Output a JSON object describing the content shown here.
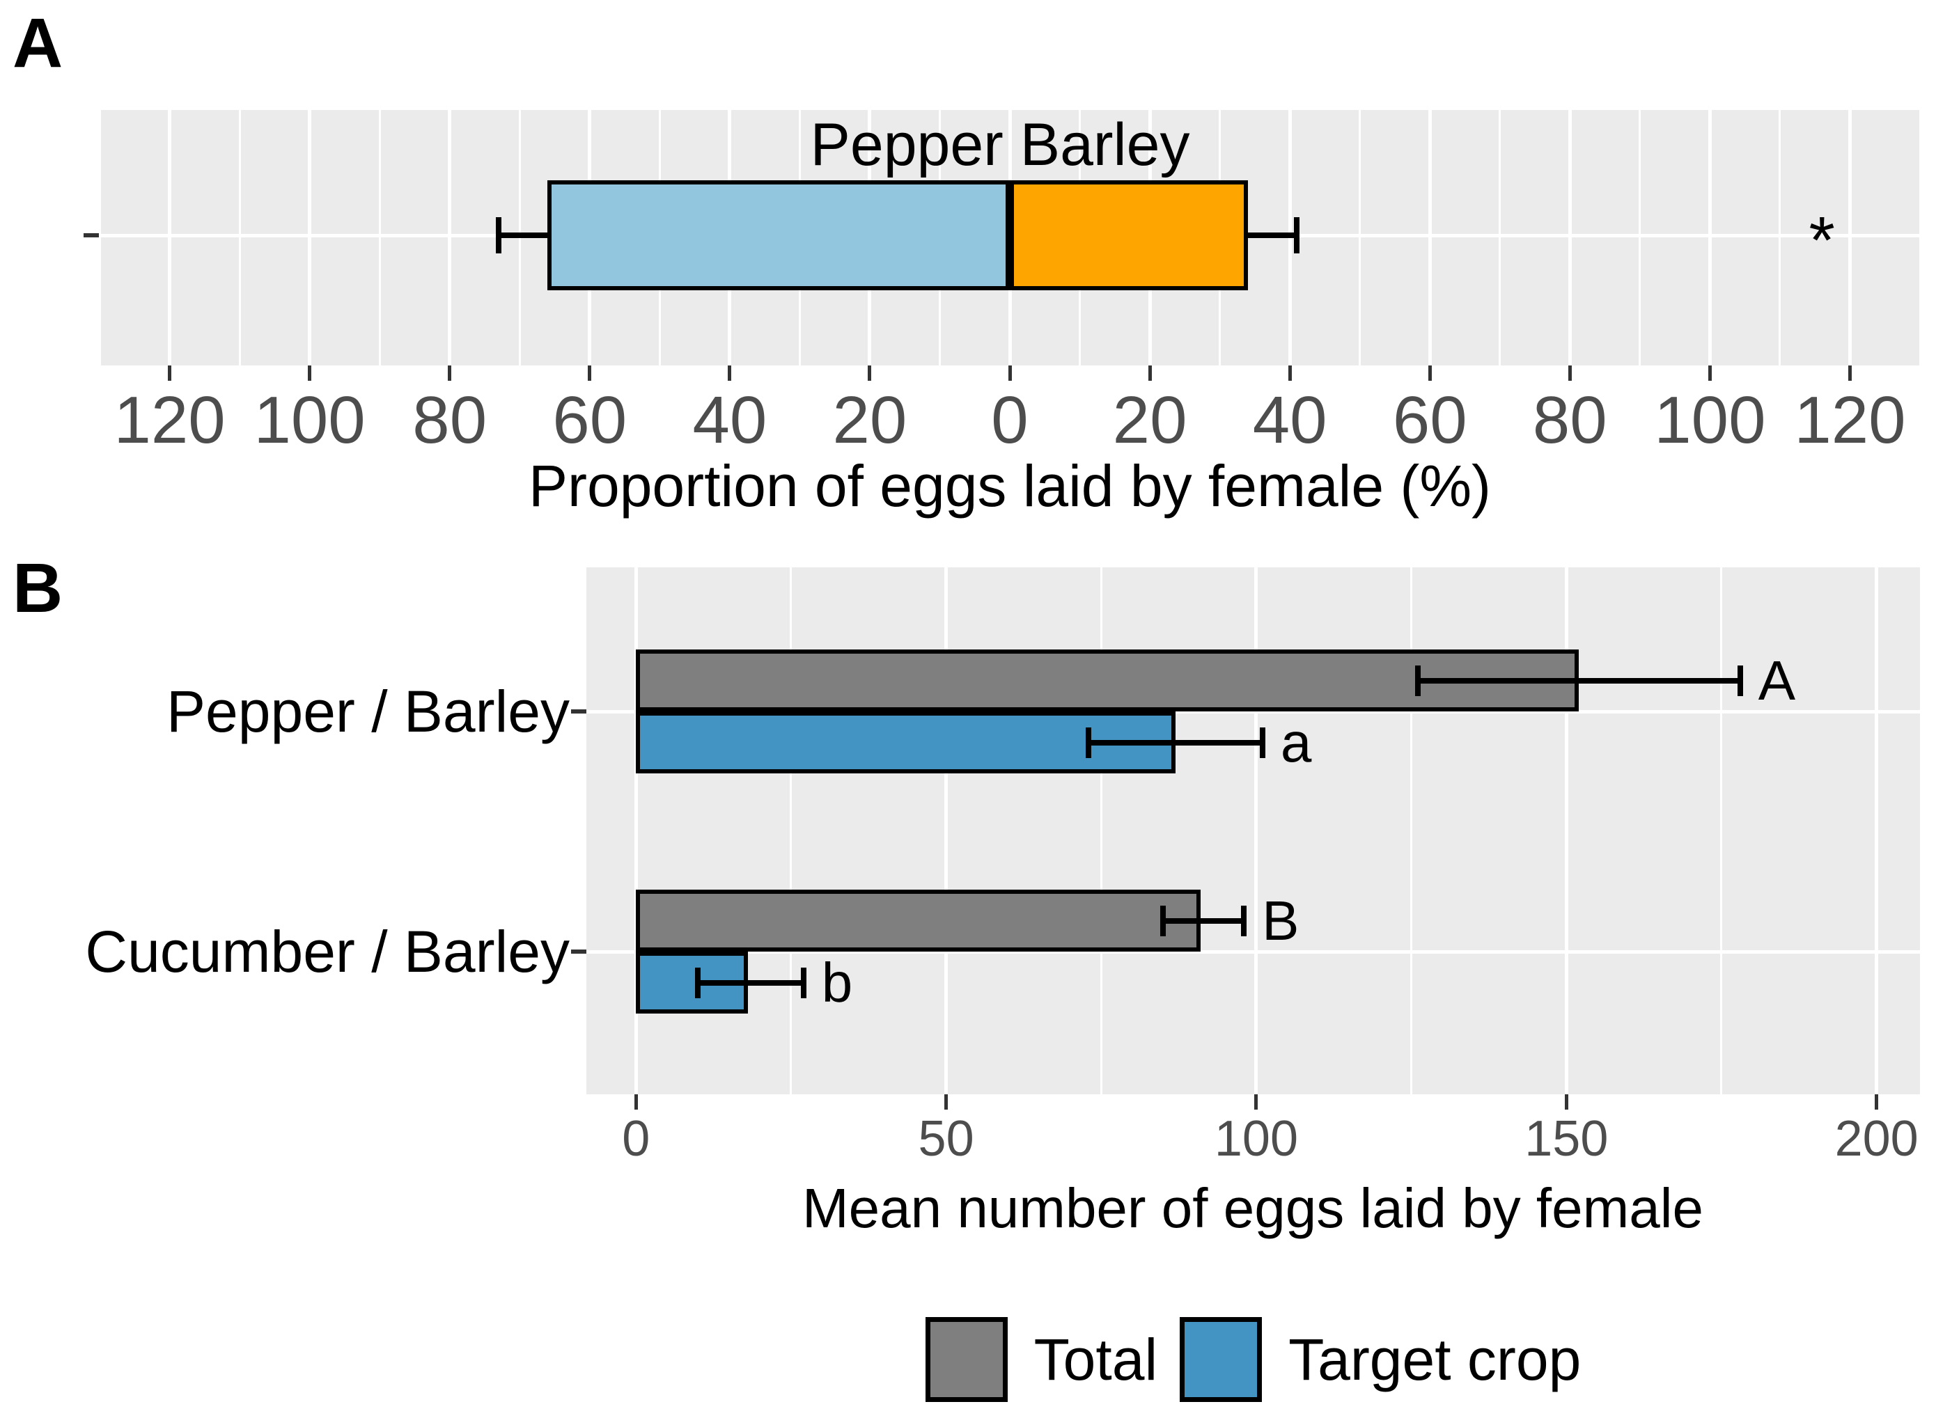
{
  "figure_labels": {
    "panel_a_tag": "A",
    "panel_b_tag": "B"
  },
  "colors": {
    "panel_bg": "#EBEBEB",
    "grid": "#FFFFFF",
    "bar_outline": "#000000",
    "tick_label": "#4D4D4D",
    "axis_title": "#000000",
    "pepper_blue": "#92C5DE",
    "barley_orange": "#FFA500",
    "total_gray": "#7F7F7F",
    "target_blue": "#4393C3"
  },
  "chart_data": [
    {
      "id": "panel-a",
      "type": "bar",
      "orientation": "horizontal-diverging",
      "xlabel": "Proportion of eggs laid by female (%)",
      "xlim": [
        -130,
        130
      ],
      "xticks": [
        -120,
        -100,
        -80,
        -60,
        -40,
        -20,
        0,
        20,
        40,
        60,
        80,
        100,
        120
      ],
      "xtick_labels": [
        "120",
        "100",
        "80",
        "60",
        "40",
        "20",
        "0",
        "20",
        "40",
        "60",
        "80",
        "100",
        "120"
      ],
      "grid_minor_every": 10,
      "grid_major_every": 20,
      "grid_on": true,
      "bars": [
        {
          "label": "Pepper",
          "value": -66,
          "whisker_end": -73,
          "color_key": "pepper_blue"
        },
        {
          "label": "Barley",
          "value": 34,
          "whisker_end": 41,
          "color_key": "barley_orange"
        }
      ],
      "annotation": "Pepper Barley",
      "significance": {
        "symbol": "*",
        "x": 116
      }
    },
    {
      "id": "panel-b",
      "type": "bar",
      "orientation": "horizontal",
      "xlabel": "Mean number of eggs laid by female",
      "xlim": [
        -8,
        207
      ],
      "xticks": [
        0,
        50,
        100,
        150,
        200
      ],
      "xtick_labels": [
        "0",
        "50",
        "100",
        "150",
        "200"
      ],
      "grid_minor_every": 25,
      "grid_major_every": 50,
      "grid_on": true,
      "categories": [
        "Pepper / Barley",
        "Cucumber / Barley"
      ],
      "series": [
        {
          "name": "Total",
          "color_key": "total_gray",
          "values": [
            152,
            91
          ],
          "ci_low": [
            126,
            85
          ],
          "ci_high": [
            178,
            98
          ],
          "letters": [
            "A",
            "B"
          ]
        },
        {
          "name": "Target crop",
          "color_key": "target_blue",
          "values": [
            87,
            18
          ],
          "ci_low": [
            73,
            10
          ],
          "ci_high": [
            101,
            27
          ],
          "letters": [
            "a",
            "b"
          ]
        }
      ],
      "legend": {
        "position": "bottom",
        "items": [
          {
            "label": "Total",
            "color_key": "total_gray"
          },
          {
            "label": "Target crop",
            "color_key": "target_blue"
          }
        ]
      }
    }
  ]
}
